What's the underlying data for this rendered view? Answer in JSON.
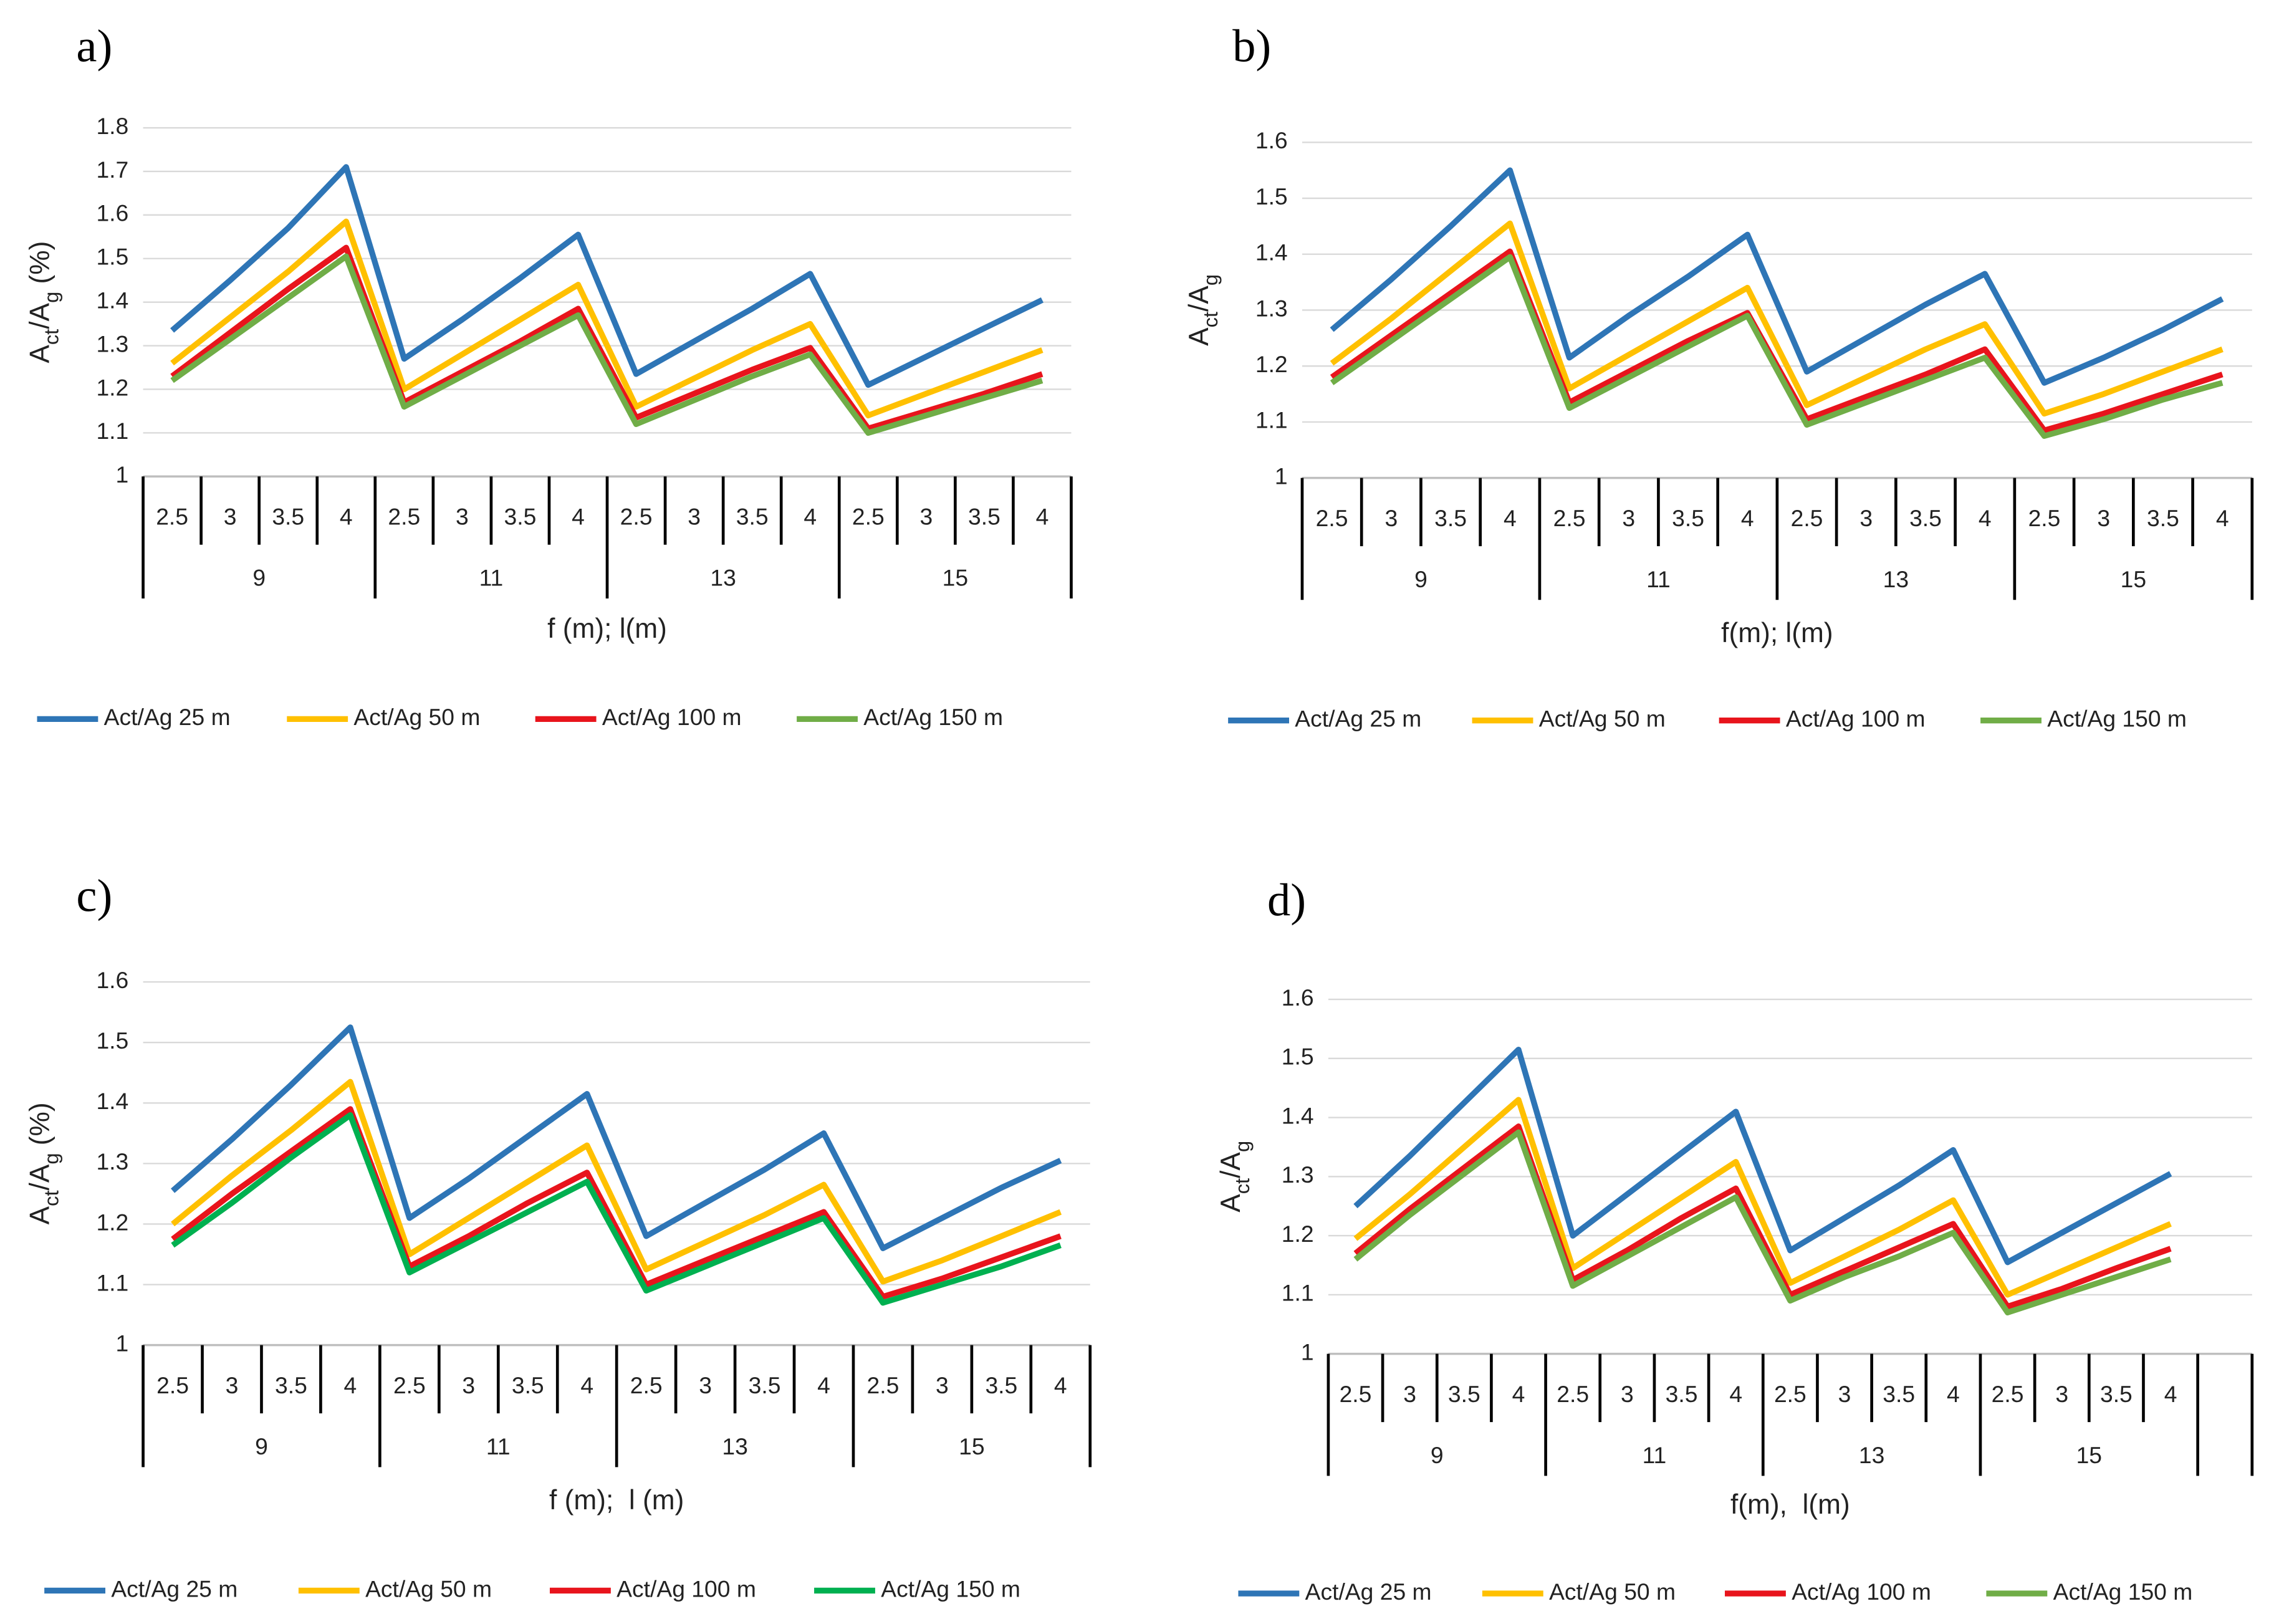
{
  "chart_data": [
    {
      "type": "line",
      "panel": "a)",
      "ylabel": [
        {
          "text": "A"
        },
        {
          "text": "ct",
          "sub": true
        },
        {
          "text": "/A"
        },
        {
          "text": "g",
          "sub": true
        },
        {
          "text": " (%)"
        }
      ],
      "xlabel": "f (m); l(m)",
      "groups": [
        {
          "name": "9",
          "categories": [
            "2.5",
            "3",
            "3.5",
            "4"
          ]
        },
        {
          "name": "11",
          "categories": [
            "2.5",
            "3",
            "3.5",
            "4"
          ]
        },
        {
          "name": "13",
          "categories": [
            "2.5",
            "3",
            "3.5",
            "4"
          ]
        },
        {
          "name": "15",
          "categories": [
            "2.5",
            "3",
            "3.5",
            "4"
          ]
        }
      ],
      "ylim": [
        1,
        1.8
      ],
      "yticks": [
        1,
        1.1,
        1.2,
        1.3,
        1.4,
        1.5,
        1.6,
        1.7,
        1.8
      ],
      "grid": true,
      "series": [
        {
          "name": "Act/Ag 25 m",
          "color": "#2e75b6",
          "values": [
            1.335,
            1.45,
            1.57,
            1.71,
            1.27,
            1.36,
            1.455,
            1.555,
            1.235,
            1.31,
            1.385,
            1.465,
            1.21,
            1.275,
            1.34,
            1.405
          ]
        },
        {
          "name": "Act/Ag 50 m",
          "color": "#ffc000",
          "values": [
            1.26,
            1.365,
            1.47,
            1.585,
            1.2,
            1.28,
            1.36,
            1.44,
            1.16,
            1.225,
            1.29,
            1.35,
            1.14,
            1.19,
            1.24,
            1.29
          ]
        },
        {
          "name": "Act/Ag 100 m",
          "color": "#e8141c",
          "values": [
            1.23,
            1.33,
            1.43,
            1.525,
            1.17,
            1.24,
            1.31,
            1.385,
            1.135,
            1.19,
            1.245,
            1.295,
            1.11,
            1.15,
            1.19,
            1.235
          ]
        },
        {
          "name": "Act/Ag 150 m",
          "color": "#70ad47",
          "values": [
            1.22,
            1.315,
            1.41,
            1.505,
            1.16,
            1.23,
            1.3,
            1.37,
            1.12,
            1.175,
            1.23,
            1.28,
            1.1,
            1.14,
            1.18,
            1.22
          ]
        }
      ]
    },
    {
      "type": "line",
      "panel": "b)",
      "ylabel": [
        {
          "text": "A"
        },
        {
          "text": "ct",
          "sub": true
        },
        {
          "text": "/A"
        },
        {
          "text": "g",
          "sub": true
        }
      ],
      "xlabel": "f(m); l(m)",
      "groups": [
        {
          "name": "9",
          "categories": [
            "2.5",
            "3",
            "3.5",
            "4"
          ]
        },
        {
          "name": "11",
          "categories": [
            "2.5",
            "3",
            "3.5",
            "4"
          ]
        },
        {
          "name": "13",
          "categories": [
            "2.5",
            "3",
            "3.5",
            "4"
          ]
        },
        {
          "name": "15",
          "categories": [
            "2.5",
            "3",
            "3.5",
            "4"
          ]
        }
      ],
      "ylim": [
        1,
        1.6
      ],
      "yticks": [
        1,
        1.1,
        1.2,
        1.3,
        1.4,
        1.5,
        1.6
      ],
      "grid": true,
      "series": [
        {
          "name": "Act/Ag 25 m",
          "color": "#2e75b6",
          "values": [
            1.265,
            1.355,
            1.45,
            1.55,
            1.215,
            1.29,
            1.36,
            1.435,
            1.19,
            1.25,
            1.31,
            1.365,
            1.17,
            1.215,
            1.265,
            1.32
          ]
        },
        {
          "name": "Act/Ag 50 m",
          "color": "#ffc000",
          "values": [
            1.205,
            1.285,
            1.37,
            1.455,
            1.16,
            1.22,
            1.28,
            1.34,
            1.13,
            1.18,
            1.23,
            1.275,
            1.115,
            1.15,
            1.19,
            1.23
          ]
        },
        {
          "name": "Act/Ag 100 m",
          "color": "#e8141c",
          "values": [
            1.18,
            1.255,
            1.33,
            1.405,
            1.135,
            1.19,
            1.245,
            1.295,
            1.105,
            1.145,
            1.185,
            1.23,
            1.085,
            1.115,
            1.15,
            1.185
          ]
        },
        {
          "name": "Act/Ag 150 m",
          "color": "#70ad47",
          "values": [
            1.17,
            1.245,
            1.32,
            1.395,
            1.125,
            1.18,
            1.235,
            1.29,
            1.095,
            1.135,
            1.175,
            1.215,
            1.075,
            1.105,
            1.14,
            1.17
          ]
        }
      ]
    },
    {
      "type": "line",
      "panel": "c)",
      "ylabel": [
        {
          "text": "A"
        },
        {
          "text": "ct",
          "sub": true
        },
        {
          "text": "/A"
        },
        {
          "text": "g",
          "sub": true
        },
        {
          "text": " (%)"
        }
      ],
      "xlabel": "f (m);  l (m)",
      "groups": [
        {
          "name": "9",
          "categories": [
            "2.5",
            "3",
            "3.5",
            "4"
          ]
        },
        {
          "name": "11",
          "categories": [
            "2.5",
            "3",
            "3.5",
            "4"
          ]
        },
        {
          "name": "13",
          "categories": [
            "2.5",
            "3",
            "3.5",
            "4"
          ]
        },
        {
          "name": "15",
          "categories": [
            "2.5",
            "3",
            "3.5",
            "4"
          ]
        }
      ],
      "ylim": [
        1,
        1.6
      ],
      "yticks": [
        1,
        1.1,
        1.2,
        1.3,
        1.4,
        1.5,
        1.6
      ],
      "grid": true,
      "series": [
        {
          "name": "Act/Ag 25 m",
          "color": "#2e75b6",
          "values": [
            1.255,
            1.34,
            1.43,
            1.525,
            1.21,
            1.275,
            1.345,
            1.415,
            1.18,
            1.235,
            1.29,
            1.35,
            1.16,
            1.21,
            1.26,
            1.305
          ]
        },
        {
          "name": "Act/Ag 50 m",
          "color": "#ffc000",
          "values": [
            1.2,
            1.28,
            1.355,
            1.435,
            1.15,
            1.21,
            1.27,
            1.33,
            1.125,
            1.17,
            1.215,
            1.265,
            1.105,
            1.14,
            1.18,
            1.22
          ]
        },
        {
          "name": "Act/Ag 100 m",
          "color": "#e8141c",
          "values": [
            1.175,
            1.25,
            1.32,
            1.39,
            1.13,
            1.18,
            1.235,
            1.285,
            1.1,
            1.14,
            1.18,
            1.22,
            1.08,
            1.11,
            1.145,
            1.18
          ]
        },
        {
          "name": "Act/Ag 150 m",
          "color": "#00b050",
          "values": [
            1.165,
            1.235,
            1.31,
            1.38,
            1.12,
            1.17,
            1.22,
            1.27,
            1.09,
            1.13,
            1.17,
            1.21,
            1.07,
            1.1,
            1.13,
            1.165
          ]
        }
      ]
    },
    {
      "type": "line",
      "panel": "d)",
      "ylabel": [
        {
          "text": "A"
        },
        {
          "text": "ct",
          "sub": true
        },
        {
          "text": "/A"
        },
        {
          "text": "g",
          "sub": true
        }
      ],
      "xlabel": "f(m),  l(m)",
      "groups": [
        {
          "name": "9",
          "categories": [
            "2.5",
            "3",
            "3.5",
            "4"
          ]
        },
        {
          "name": "11",
          "categories": [
            "2.5",
            "3",
            "3.5",
            "4"
          ]
        },
        {
          "name": "13",
          "categories": [
            "2.5",
            "3",
            "3.5",
            "4"
          ]
        },
        {
          "name": "15",
          "categories": [
            "2.5",
            "3",
            "3.5",
            "4"
          ]
        },
        {
          "name": null,
          "categories": [
            null
          ]
        }
      ],
      "ylim": [
        1,
        1.6
      ],
      "yticks": [
        1,
        1.1,
        1.2,
        1.3,
        1.4,
        1.5,
        1.6
      ],
      "grid": true,
      "series": [
        {
          "name": "Act/Ag 25 m",
          "color": "#2e75b6",
          "values": [
            1.25,
            1.335,
            1.425,
            1.515,
            1.2,
            1.27,
            1.34,
            1.41,
            1.175,
            1.23,
            1.285,
            1.345,
            1.155,
            1.205,
            1.255,
            1.305,
            null
          ]
        },
        {
          "name": "Act/Ag 50 m",
          "color": "#ffc000",
          "values": [
            1.195,
            1.27,
            1.35,
            1.43,
            1.145,
            1.205,
            1.265,
            1.325,
            1.12,
            1.165,
            1.21,
            1.26,
            1.1,
            1.14,
            1.18,
            1.22,
            null
          ]
        },
        {
          "name": "Act/Ag 100 m",
          "color": "#e8141c",
          "values": [
            1.17,
            1.245,
            1.315,
            1.385,
            1.125,
            1.175,
            1.23,
            1.28,
            1.1,
            1.14,
            1.18,
            1.22,
            1.08,
            1.11,
            1.145,
            1.178,
            null
          ]
        },
        {
          "name": "Act/Ag 150 m",
          "color": "#70ad47",
          "values": [
            1.16,
            1.235,
            1.305,
            1.375,
            1.115,
            1.165,
            1.215,
            1.265,
            1.09,
            1.13,
            1.165,
            1.205,
            1.07,
            1.1,
            1.13,
            1.16,
            null
          ]
        }
      ]
    }
  ]
}
